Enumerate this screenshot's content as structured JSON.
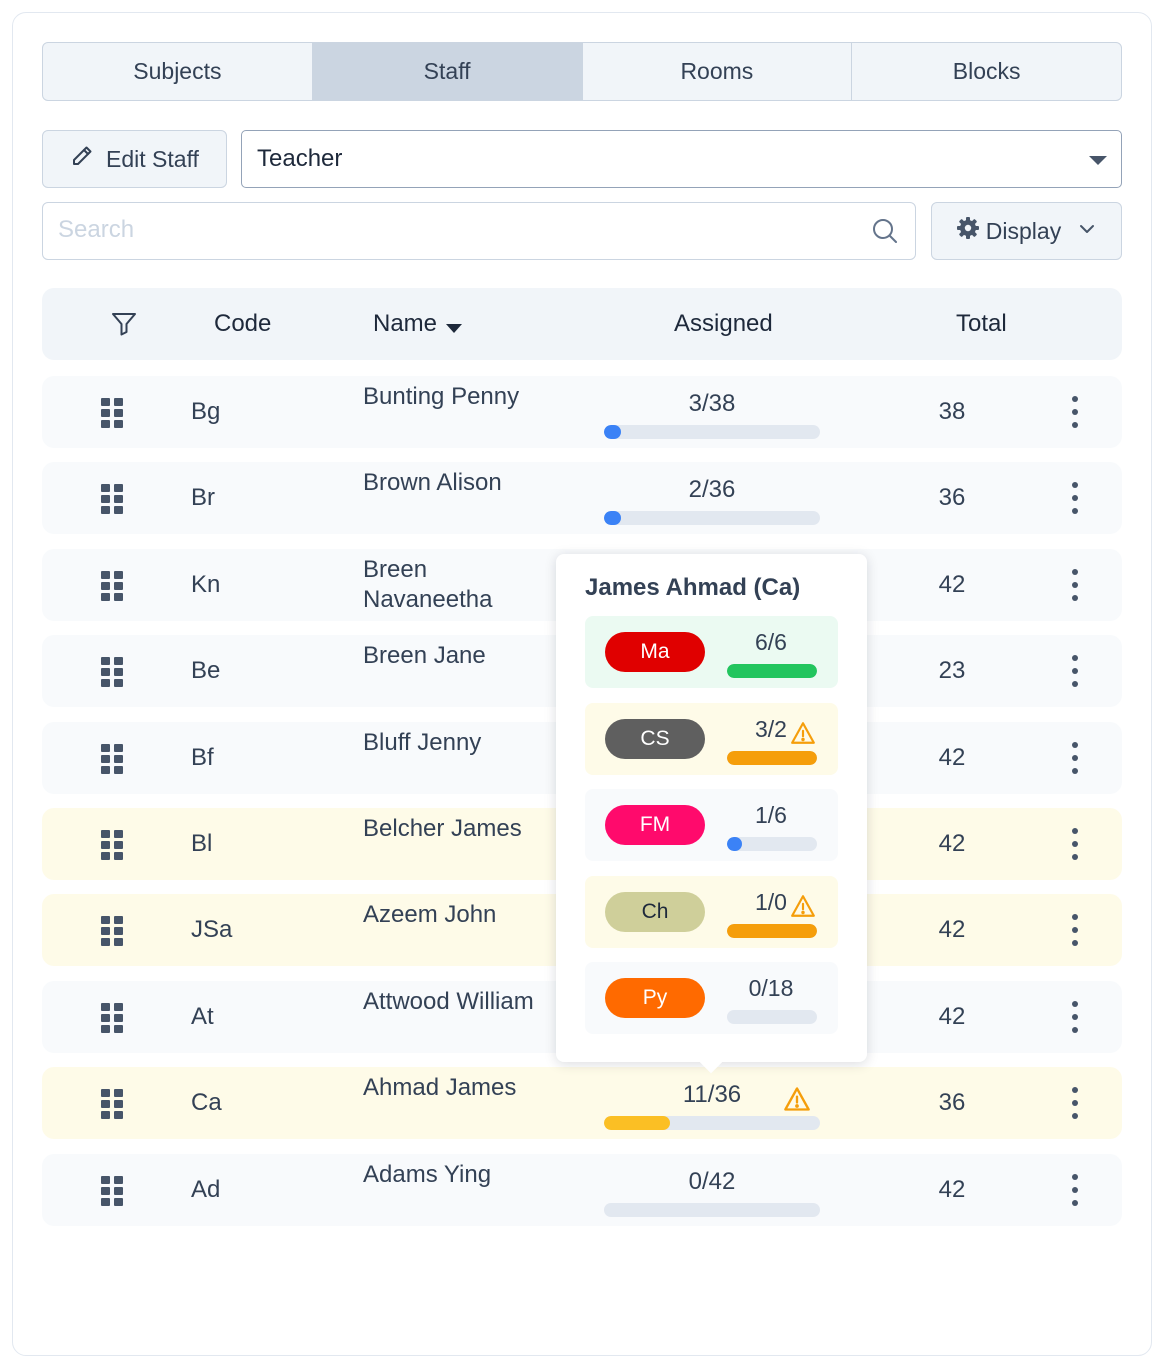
{
  "tabs": [
    {
      "label": "Subjects",
      "active": false
    },
    {
      "label": "Staff",
      "active": true
    },
    {
      "label": "Rooms",
      "active": false
    },
    {
      "label": "Blocks",
      "active": false
    }
  ],
  "toolbar": {
    "edit_label": "Edit Staff",
    "role_select_value": "Teacher",
    "search_placeholder": "Search",
    "display_label": "Display"
  },
  "table": {
    "headers": {
      "code": "Code",
      "name": "Name",
      "assigned": "Assigned",
      "total": "Total"
    },
    "sort": {
      "column": "name",
      "direction": "descending-arrow"
    },
    "rows": [
      {
        "code": "Bg",
        "name": "Bunting Penny",
        "assigned": "3/38",
        "progress": 0.079,
        "total": "38",
        "highlight": false,
        "warning": false
      },
      {
        "code": "Br",
        "name": "Brown Alison",
        "assigned": "2/36",
        "progress": 0.056,
        "total": "36",
        "highlight": false,
        "warning": false
      },
      {
        "code": "Kn",
        "name": "Breen Navaneetha",
        "assigned": "",
        "progress": 0,
        "total": "42",
        "highlight": false,
        "warning": false
      },
      {
        "code": "Be",
        "name": "Breen Jane",
        "assigned": "",
        "progress": 0,
        "total": "23",
        "highlight": false,
        "warning": false
      },
      {
        "code": "Bf",
        "name": "Bluff Jenny",
        "assigned": "",
        "progress": 0,
        "total": "42",
        "highlight": false,
        "warning": false
      },
      {
        "code": "Bl",
        "name": "Belcher James",
        "assigned": "",
        "progress": 0,
        "total": "42",
        "highlight": true,
        "warning": false
      },
      {
        "code": "JSa",
        "name": "Azeem John",
        "assigned": "",
        "progress": 0,
        "total": "42",
        "highlight": true,
        "warning": false
      },
      {
        "code": "At",
        "name": "Attwood William",
        "assigned": "",
        "progress": 0,
        "total": "42",
        "highlight": false,
        "warning": false
      },
      {
        "code": "Ca",
        "name": "Ahmad James",
        "assigned": "11/36",
        "progress": 0.306,
        "total": "36",
        "highlight": true,
        "warning": true
      },
      {
        "code": "Ad",
        "name": "Adams Ying",
        "assigned": "0/42",
        "progress": 0,
        "total": "42",
        "highlight": false,
        "warning": false
      }
    ]
  },
  "popover": {
    "title": "James Ahmad (Ca)",
    "subjects": [
      {
        "code": "Ma",
        "value": "6/6",
        "progress": 1.0,
        "status": "ok",
        "pill_bg": "#e00000",
        "pill_fg": "#ffffff",
        "bar_color": "#22c55e"
      },
      {
        "code": "CS",
        "value": "3/2",
        "progress": 1.0,
        "status": "over",
        "pill_bg": "#5f5f5f",
        "pill_fg": "#ffffff",
        "bar_color": "#f59e0b"
      },
      {
        "code": "FM",
        "value": "1/6",
        "progress": 0.167,
        "status": "under",
        "pill_bg": "#ff0a6c",
        "pill_fg": "#ffffff",
        "bar_color": "#3b82f6"
      },
      {
        "code": "Ch",
        "value": "1/0",
        "progress": 1.0,
        "status": "over",
        "pill_bg": "#cfcf9a",
        "pill_fg": "#1e293b",
        "bar_color": "#f59e0b"
      },
      {
        "code": "Py",
        "value": "0/18",
        "progress": 0,
        "status": "under",
        "pill_bg": "#ff6a00",
        "pill_fg": "#ffffff",
        "bar_color": "#3b82f6"
      }
    ]
  },
  "colors": {
    "accent_blue": "#3b82f6",
    "warning_amber": "#fbbf24",
    "row_highlight": "#fefbe8"
  }
}
